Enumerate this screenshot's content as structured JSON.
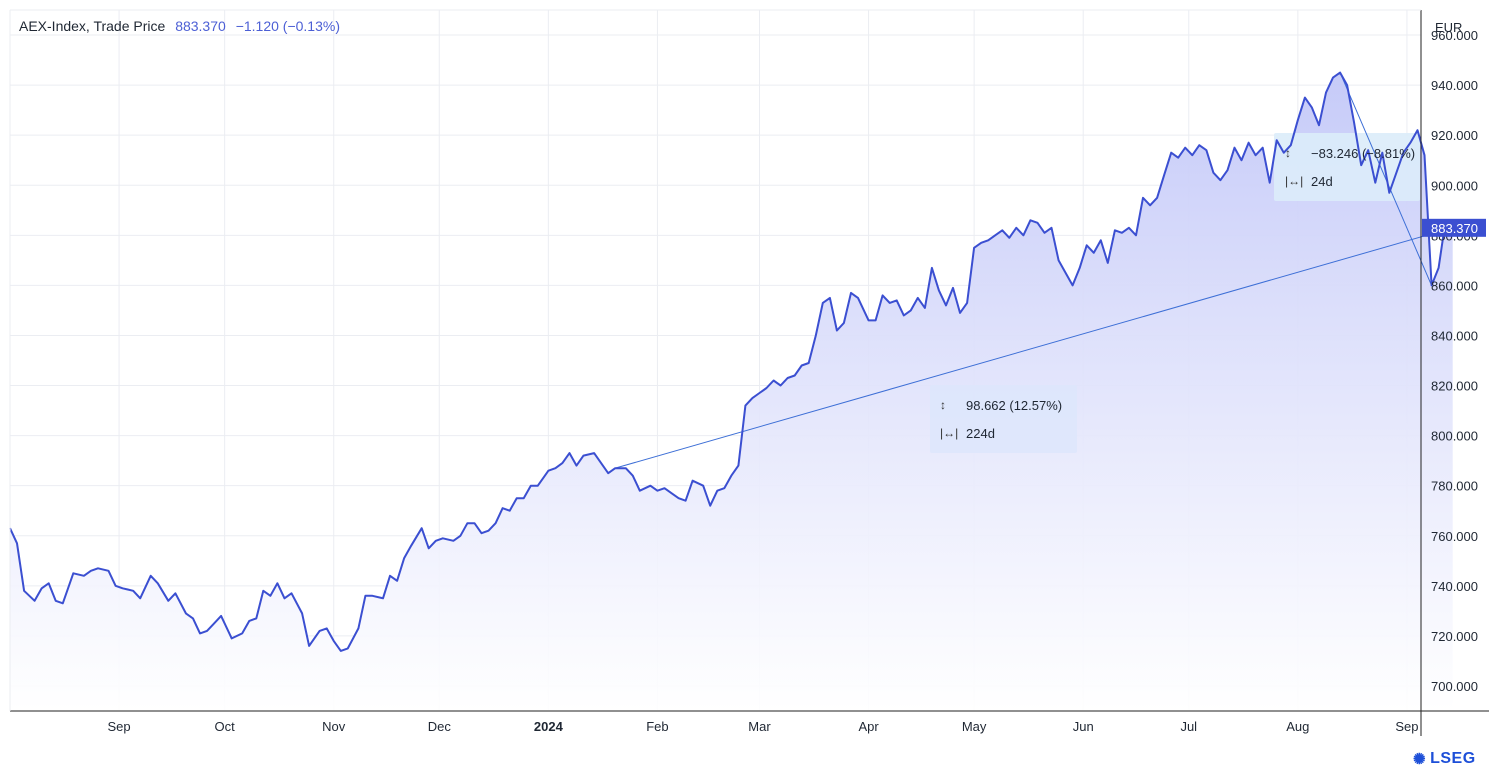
{
  "header": {
    "name": "AEX-Index, Trade Price",
    "last": "883.370",
    "change": "−1.120 (−0.13%)"
  },
  "currency": "EUR",
  "price_tag": "883.370",
  "brand": "LSEG",
  "colors": {
    "line": "#3b4fd1",
    "fill_top": "#c9cdfa",
    "fill_bottom": "#ffffff",
    "tag": "#3b4fd1",
    "grid": "#ebedf2"
  },
  "measurements": [
    {
      "delta": "98.662 (12.57%)",
      "duration": "224d",
      "range_icon": "vertical-range-icon",
      "time_icon": "horizontal-range-icon"
    },
    {
      "delta": "−83.246 (−8.81%)",
      "duration": "24d",
      "range_icon": "vertical-range-icon",
      "time_icon": "horizontal-range-icon"
    }
  ],
  "chart_data": {
    "type": "area",
    "title": "AEX-Index, Trade Price",
    "xlabel": "",
    "ylabel": "",
    "ylim": [
      690,
      970
    ],
    "yticks": [
      700,
      720,
      740,
      760,
      780,
      800,
      820,
      840,
      860,
      880,
      900,
      920,
      940,
      960
    ],
    "ytick_labels": [
      "700.000",
      "720.000",
      "740.000",
      "760.000",
      "780.000",
      "800.000",
      "820.000",
      "840.000",
      "860.000",
      "880.000",
      "900.000",
      "920.000",
      "940.000",
      "960.000"
    ],
    "xlim": [
      "2023-08-01",
      "2024-09-05"
    ],
    "xticks": [
      "2023-09-01",
      "2023-10-01",
      "2023-11-01",
      "2023-12-01",
      "2024-01-01",
      "2024-02-01",
      "2024-03-01",
      "2024-04-01",
      "2024-05-01",
      "2024-06-01",
      "2024-07-01",
      "2024-08-01",
      "2024-09-01"
    ],
    "xtick_labels": [
      "Sep",
      "Oct",
      "Nov",
      "Dec",
      "2024",
      "Feb",
      "Mar",
      "Apr",
      "May",
      "Jun",
      "Jul",
      "Aug",
      "Sep"
    ],
    "grid": true,
    "series": [
      {
        "points": [
          [
            "2023-08-01",
            763
          ],
          [
            "2023-08-03",
            757
          ],
          [
            "2023-08-05",
            738
          ],
          [
            "2023-08-08",
            734
          ],
          [
            "2023-08-10",
            739
          ],
          [
            "2023-08-12",
            741
          ],
          [
            "2023-08-14",
            734
          ],
          [
            "2023-08-16",
            733
          ],
          [
            "2023-08-19",
            745
          ],
          [
            "2023-08-22",
            744
          ],
          [
            "2023-08-24",
            746
          ],
          [
            "2023-08-26",
            747
          ],
          [
            "2023-08-29",
            746
          ],
          [
            "2023-08-31",
            740
          ],
          [
            "2023-09-02",
            739
          ],
          [
            "2023-09-05",
            738
          ],
          [
            "2023-09-07",
            735
          ],
          [
            "2023-09-10",
            744
          ],
          [
            "2023-09-12",
            741
          ],
          [
            "2023-09-15",
            734
          ],
          [
            "2023-09-17",
            737
          ],
          [
            "2023-09-20",
            729
          ],
          [
            "2023-09-22",
            727
          ],
          [
            "2023-09-24",
            721
          ],
          [
            "2023-09-26",
            722
          ],
          [
            "2023-09-28",
            725
          ],
          [
            "2023-09-30",
            728
          ],
          [
            "2023-10-03",
            719
          ],
          [
            "2023-10-06",
            721
          ],
          [
            "2023-10-08",
            726
          ],
          [
            "2023-10-10",
            727
          ],
          [
            "2023-10-12",
            738
          ],
          [
            "2023-10-14",
            736
          ],
          [
            "2023-10-16",
            741
          ],
          [
            "2023-10-18",
            735
          ],
          [
            "2023-10-20",
            737
          ],
          [
            "2023-10-23",
            729
          ],
          [
            "2023-10-25",
            716
          ],
          [
            "2023-10-28",
            722
          ],
          [
            "2023-10-30",
            723
          ],
          [
            "2023-11-01",
            718
          ],
          [
            "2023-11-03",
            714
          ],
          [
            "2023-11-05",
            715
          ],
          [
            "2023-11-08",
            723
          ],
          [
            "2023-11-10",
            736
          ],
          [
            "2023-11-12",
            736
          ],
          [
            "2023-11-15",
            735
          ],
          [
            "2023-11-17",
            744
          ],
          [
            "2023-11-19",
            742
          ],
          [
            "2023-11-21",
            751
          ],
          [
            "2023-11-23",
            756
          ],
          [
            "2023-11-26",
            763
          ],
          [
            "2023-11-28",
            755
          ],
          [
            "2023-11-30",
            758
          ],
          [
            "2023-12-02",
            759
          ],
          [
            "2023-12-05",
            758
          ],
          [
            "2023-12-07",
            760
          ],
          [
            "2023-12-09",
            765
          ],
          [
            "2023-12-11",
            765
          ],
          [
            "2023-12-13",
            761
          ],
          [
            "2023-12-15",
            762
          ],
          [
            "2023-12-17",
            765
          ],
          [
            "2023-12-19",
            771
          ],
          [
            "2023-12-21",
            770
          ],
          [
            "2023-12-23",
            775
          ],
          [
            "2023-12-25",
            775
          ],
          [
            "2023-12-27",
            780
          ],
          [
            "2023-12-29",
            780
          ],
          [
            "2024-01-01",
            786
          ],
          [
            "2024-01-03",
            787
          ],
          [
            "2024-01-05",
            789
          ],
          [
            "2024-01-07",
            793
          ],
          [
            "2024-01-09",
            788
          ],
          [
            "2024-01-11",
            792
          ],
          [
            "2024-01-14",
            793
          ],
          [
            "2024-01-16",
            789
          ],
          [
            "2024-01-18",
            785
          ],
          [
            "2024-01-20",
            787
          ],
          [
            "2024-01-23",
            787
          ],
          [
            "2024-01-25",
            784
          ],
          [
            "2024-01-27",
            778
          ],
          [
            "2024-01-30",
            780
          ],
          [
            "2024-02-01",
            778
          ],
          [
            "2024-02-03",
            779
          ],
          [
            "2024-02-05",
            777
          ],
          [
            "2024-02-07",
            775
          ],
          [
            "2024-02-09",
            774
          ],
          [
            "2024-02-11",
            782
          ],
          [
            "2024-02-14",
            780
          ],
          [
            "2024-02-16",
            772
          ],
          [
            "2024-02-18",
            778
          ],
          [
            "2024-02-20",
            779
          ],
          [
            "2024-02-22",
            784
          ],
          [
            "2024-02-24",
            788
          ],
          [
            "2024-02-26",
            812
          ],
          [
            "2024-02-28",
            815
          ],
          [
            "2024-03-01",
            817
          ],
          [
            "2024-03-03",
            819
          ],
          [
            "2024-03-05",
            822
          ],
          [
            "2024-03-07",
            820
          ],
          [
            "2024-03-09",
            823
          ],
          [
            "2024-03-11",
            824
          ],
          [
            "2024-03-13",
            828
          ],
          [
            "2024-03-15",
            829
          ],
          [
            "2024-03-17",
            840
          ],
          [
            "2024-03-19",
            853
          ],
          [
            "2024-03-21",
            855
          ],
          [
            "2024-03-23",
            842
          ],
          [
            "2024-03-25",
            845
          ],
          [
            "2024-03-27",
            857
          ],
          [
            "2024-03-29",
            855
          ],
          [
            "2024-04-01",
            846
          ],
          [
            "2024-04-03",
            846
          ],
          [
            "2024-04-05",
            856
          ],
          [
            "2024-04-07",
            853
          ],
          [
            "2024-04-09",
            854
          ],
          [
            "2024-04-11",
            848
          ],
          [
            "2024-04-13",
            850
          ],
          [
            "2024-04-15",
            855
          ],
          [
            "2024-04-17",
            851
          ],
          [
            "2024-04-19",
            867
          ],
          [
            "2024-04-21",
            858
          ],
          [
            "2024-04-23",
            852
          ],
          [
            "2024-04-25",
            859
          ],
          [
            "2024-04-27",
            849
          ],
          [
            "2024-04-29",
            853
          ],
          [
            "2024-05-01",
            875
          ],
          [
            "2024-05-03",
            877
          ],
          [
            "2024-05-05",
            878
          ],
          [
            "2024-05-07",
            880
          ],
          [
            "2024-05-09",
            882
          ],
          [
            "2024-05-11",
            879
          ],
          [
            "2024-05-13",
            883
          ],
          [
            "2024-05-15",
            880
          ],
          [
            "2024-05-17",
            886
          ],
          [
            "2024-05-19",
            885
          ],
          [
            "2024-05-21",
            881
          ],
          [
            "2024-05-23",
            883
          ],
          [
            "2024-05-25",
            870
          ],
          [
            "2024-05-27",
            865
          ],
          [
            "2024-05-29",
            860
          ],
          [
            "2024-05-31",
            867
          ],
          [
            "2024-06-02",
            876
          ],
          [
            "2024-06-04",
            873
          ],
          [
            "2024-06-06",
            878
          ],
          [
            "2024-06-08",
            869
          ],
          [
            "2024-06-10",
            882
          ],
          [
            "2024-06-12",
            881
          ],
          [
            "2024-06-14",
            883
          ],
          [
            "2024-06-16",
            880
          ],
          [
            "2024-06-18",
            895
          ],
          [
            "2024-06-20",
            892
          ],
          [
            "2024-06-22",
            895
          ],
          [
            "2024-06-24",
            904
          ],
          [
            "2024-06-26",
            913
          ],
          [
            "2024-06-28",
            911
          ],
          [
            "2024-06-30",
            915
          ],
          [
            "2024-07-02",
            912
          ],
          [
            "2024-07-04",
            916
          ],
          [
            "2024-07-06",
            914
          ],
          [
            "2024-07-08",
            905
          ],
          [
            "2024-07-10",
            902
          ],
          [
            "2024-07-12",
            906
          ],
          [
            "2024-07-14",
            915
          ],
          [
            "2024-07-16",
            910
          ],
          [
            "2024-07-18",
            917
          ],
          [
            "2024-07-20",
            912
          ],
          [
            "2024-07-22",
            915
          ],
          [
            "2024-07-24",
            901
          ],
          [
            "2024-07-26",
            918
          ],
          [
            "2024-07-28",
            913
          ],
          [
            "2024-07-30",
            916
          ],
          [
            "2024-08-01",
            926
          ],
          [
            "2024-08-03",
            935
          ],
          [
            "2024-08-05",
            931
          ],
          [
            "2024-08-07",
            924
          ],
          [
            "2024-08-09",
            937
          ],
          [
            "2024-08-11",
            943
          ],
          [
            "2024-08-13",
            945
          ],
          [
            "2024-08-15",
            940
          ],
          [
            "2024-08-17",
            925
          ],
          [
            "2024-08-19",
            908
          ],
          [
            "2024-08-21",
            914
          ],
          [
            "2024-08-23",
            901
          ],
          [
            "2024-08-25",
            913
          ],
          [
            "2024-08-27",
            897
          ],
          [
            "2024-08-29",
            905
          ],
          [
            "2024-08-31",
            913
          ],
          [
            "2024-09-02",
            917
          ],
          [
            "2024-09-04",
            922
          ],
          [
            "2024-09-06",
            912
          ],
          [
            "2024-09-08",
            860
          ],
          [
            "2024-09-10",
            867
          ],
          [
            "2024-09-12",
            886
          ],
          [
            "2024-09-14",
            883
          ]
        ]
      }
    ]
  }
}
